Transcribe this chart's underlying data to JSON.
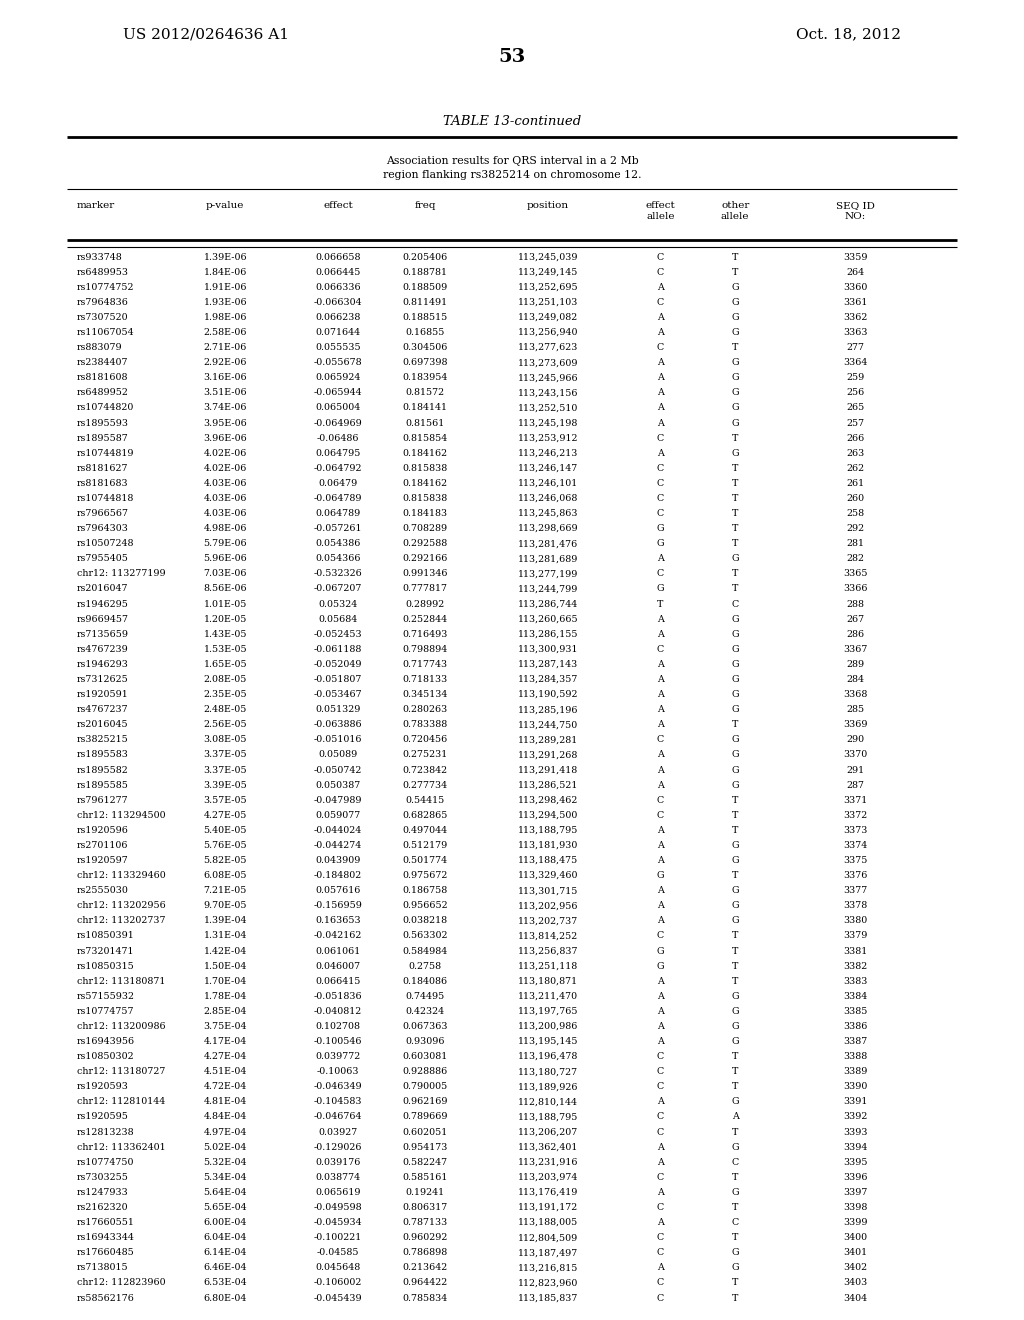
{
  "patent_number": "US 2012/0264636 A1",
  "date": "Oct. 18, 2012",
  "page_number": "53",
  "table_title": "TABLE 13-continued",
  "table_subtitle": "Association results for QRS interval in a 2 Mb\nregion flanking rs3825214 on chromosome 12.",
  "rows": [
    [
      "rs933748",
      "1.39E-06",
      "0.066658",
      "0.205406",
      "113,245,039",
      "C",
      "T",
      "3359"
    ],
    [
      "rs6489953",
      "1.84E-06",
      "0.066445",
      "0.188781",
      "113,249,145",
      "C",
      "T",
      "264"
    ],
    [
      "rs10774752",
      "1.91E-06",
      "0.066336",
      "0.188509",
      "113,252,695",
      "A",
      "G",
      "3360"
    ],
    [
      "rs7964836",
      "1.93E-06",
      "-0.066304",
      "0.811491",
      "113,251,103",
      "C",
      "G",
      "3361"
    ],
    [
      "rs7307520",
      "1.98E-06",
      "0.066238",
      "0.188515",
      "113,249,082",
      "A",
      "G",
      "3362"
    ],
    [
      "rs11067054",
      "2.58E-06",
      "0.071644",
      "0.16855",
      "113,256,940",
      "A",
      "G",
      "3363"
    ],
    [
      "rs883079",
      "2.71E-06",
      "0.055535",
      "0.304506",
      "113,277,623",
      "C",
      "T",
      "277"
    ],
    [
      "rs2384407",
      "2.92E-06",
      "-0.055678",
      "0.697398",
      "113,273,609",
      "A",
      "G",
      "3364"
    ],
    [
      "rs8181608",
      "3.16E-06",
      "0.065924",
      "0.183954",
      "113,245,966",
      "A",
      "G",
      "259"
    ],
    [
      "rs6489952",
      "3.51E-06",
      "-0.065944",
      "0.81572",
      "113,243,156",
      "A",
      "G",
      "256"
    ],
    [
      "rs10744820",
      "3.74E-06",
      "0.065004",
      "0.184141",
      "113,252,510",
      "A",
      "G",
      "265"
    ],
    [
      "rs1895593",
      "3.95E-06",
      "-0.064969",
      "0.81561",
      "113,245,198",
      "A",
      "G",
      "257"
    ],
    [
      "rs1895587",
      "3.96E-06",
      "-0.06486",
      "0.815854",
      "113,253,912",
      "C",
      "T",
      "266"
    ],
    [
      "rs10744819",
      "4.02E-06",
      "0.064795",
      "0.184162",
      "113,246,213",
      "A",
      "G",
      "263"
    ],
    [
      "rs8181627",
      "4.02E-06",
      "-0.064792",
      "0.815838",
      "113,246,147",
      "C",
      "T",
      "262"
    ],
    [
      "rs8181683",
      "4.03E-06",
      "0.06479",
      "0.184162",
      "113,246,101",
      "C",
      "T",
      "261"
    ],
    [
      "rs10744818",
      "4.03E-06",
      "-0.064789",
      "0.815838",
      "113,246,068",
      "C",
      "T",
      "260"
    ],
    [
      "rs7966567",
      "4.03E-06",
      "0.064789",
      "0.184183",
      "113,245,863",
      "C",
      "T",
      "258"
    ],
    [
      "rs7964303",
      "4.98E-06",
      "-0.057261",
      "0.708289",
      "113,298,669",
      "G",
      "T",
      "292"
    ],
    [
      "rs10507248",
      "5.79E-06",
      "0.054386",
      "0.292588",
      "113,281,476",
      "G",
      "T",
      "281"
    ],
    [
      "rs7955405",
      "5.96E-06",
      "0.054366",
      "0.292166",
      "113,281,689",
      "A",
      "G",
      "282"
    ],
    [
      "chr12: 113277199",
      "7.03E-06",
      "-0.532326",
      "0.991346",
      "113,277,199",
      "C",
      "T",
      "3365"
    ],
    [
      "rs2016047",
      "8.56E-06",
      "-0.067207",
      "0.777817",
      "113,244,799",
      "G",
      "T",
      "3366"
    ],
    [
      "rs1946295",
      "1.01E-05",
      "0.05324",
      "0.28992",
      "113,286,744",
      "T",
      "C",
      "288"
    ],
    [
      "rs9669457",
      "1.20E-05",
      "0.05684",
      "0.252844",
      "113,260,665",
      "A",
      "G",
      "267"
    ],
    [
      "rs7135659",
      "1.43E-05",
      "-0.052453",
      "0.716493",
      "113,286,155",
      "A",
      "G",
      "286"
    ],
    [
      "rs4767239",
      "1.53E-05",
      "-0.061188",
      "0.798894",
      "113,300,931",
      "C",
      "G",
      "3367"
    ],
    [
      "rs1946293",
      "1.65E-05",
      "-0.052049",
      "0.717743",
      "113,287,143",
      "A",
      "G",
      "289"
    ],
    [
      "rs7312625",
      "2.08E-05",
      "-0.051807",
      "0.718133",
      "113,284,357",
      "A",
      "G",
      "284"
    ],
    [
      "rs1920591",
      "2.35E-05",
      "-0.053467",
      "0.345134",
      "113,190,592",
      "A",
      "G",
      "3368"
    ],
    [
      "rs4767237",
      "2.48E-05",
      "0.051329",
      "0.280263",
      "113,285,196",
      "A",
      "G",
      "285"
    ],
    [
      "rs2016045",
      "2.56E-05",
      "-0.063886",
      "0.783388",
      "113,244,750",
      "A",
      "T",
      "3369"
    ],
    [
      "rs3825215",
      "3.08E-05",
      "-0.051016",
      "0.720456",
      "113,289,281",
      "C",
      "G",
      "290"
    ],
    [
      "rs1895583",
      "3.37E-05",
      "0.05089",
      "0.275231",
      "113,291,268",
      "A",
      "G",
      "3370"
    ],
    [
      "rs1895582",
      "3.37E-05",
      "-0.050742",
      "0.723842",
      "113,291,418",
      "A",
      "G",
      "291"
    ],
    [
      "rs1895585",
      "3.39E-05",
      "0.050387",
      "0.277734",
      "113,286,521",
      "A",
      "G",
      "287"
    ],
    [
      "rs7961277",
      "3.57E-05",
      "-0.047989",
      "0.54415",
      "113,298,462",
      "C",
      "T",
      "3371"
    ],
    [
      "chr12: 113294500",
      "4.27E-05",
      "0.059077",
      "0.682865",
      "113,294,500",
      "C",
      "T",
      "3372"
    ],
    [
      "rs1920596",
      "5.40E-05",
      "-0.044024",
      "0.497044",
      "113,188,795",
      "A",
      "T",
      "3373"
    ],
    [
      "rs2701106",
      "5.76E-05",
      "-0.044274",
      "0.512179",
      "113,181,930",
      "A",
      "G",
      "3374"
    ],
    [
      "rs1920597",
      "5.82E-05",
      "0.043909",
      "0.501774",
      "113,188,475",
      "A",
      "G",
      "3375"
    ],
    [
      "chr12: 113329460",
      "6.08E-05",
      "-0.184802",
      "0.975672",
      "113,329,460",
      "G",
      "T",
      "3376"
    ],
    [
      "rs2555030",
      "7.21E-05",
      "0.057616",
      "0.186758",
      "113,301,715",
      "A",
      "G",
      "3377"
    ],
    [
      "chr12: 113202956",
      "9.70E-05",
      "-0.156959",
      "0.956652",
      "113,202,956",
      "A",
      "G",
      "3378"
    ],
    [
      "chr12: 113202737",
      "1.39E-04",
      "0.163653",
      "0.038218",
      "113,202,737",
      "A",
      "G",
      "3380"
    ],
    [
      "rs10850391",
      "1.31E-04",
      "-0.042162",
      "0.563302",
      "113,814,252",
      "C",
      "T",
      "3379"
    ],
    [
      "rs73201471",
      "1.42E-04",
      "0.061061",
      "0.584984",
      "113,256,837",
      "G",
      "T",
      "3381"
    ],
    [
      "rs10850315",
      "1.50E-04",
      "0.046007",
      "0.2758",
      "113,251,118",
      "G",
      "T",
      "3382"
    ],
    [
      "chr12: 113180871",
      "1.70E-04",
      "0.066415",
      "0.184086",
      "113,180,871",
      "A",
      "T",
      "3383"
    ],
    [
      "rs57155932",
      "1.78E-04",
      "-0.051836",
      "0.74495",
      "113,211,470",
      "A",
      "G",
      "3384"
    ],
    [
      "rs10774757",
      "2.85E-04",
      "-0.040812",
      "0.42324",
      "113,197,765",
      "A",
      "G",
      "3385"
    ],
    [
      "chr12: 113200986",
      "3.75E-04",
      "0.102708",
      "0.067363",
      "113,200,986",
      "A",
      "G",
      "3386"
    ],
    [
      "rs16943956",
      "4.17E-04",
      "-0.100546",
      "0.93096",
      "113,195,145",
      "A",
      "G",
      "3387"
    ],
    [
      "rs10850302",
      "4.27E-04",
      "0.039772",
      "0.603081",
      "113,196,478",
      "C",
      "T",
      "3388"
    ],
    [
      "chr12: 113180727",
      "4.51E-04",
      "-0.10063",
      "0.928886",
      "113,180,727",
      "C",
      "T",
      "3389"
    ],
    [
      "rs1920593",
      "4.72E-04",
      "-0.046349",
      "0.790005",
      "113,189,926",
      "C",
      "T",
      "3390"
    ],
    [
      "chr12: 112810144",
      "4.81E-04",
      "-0.104583",
      "0.962169",
      "112,810,144",
      "A",
      "G",
      "3391"
    ],
    [
      "rs1920595",
      "4.84E-04",
      "-0.046764",
      "0.789669",
      "113,188,795",
      "C",
      "A",
      "3392"
    ],
    [
      "rs12813238",
      "4.97E-04",
      "0.03927",
      "0.602051",
      "113,206,207",
      "C",
      "T",
      "3393"
    ],
    [
      "chr12: 113362401",
      "5.02E-04",
      "-0.129026",
      "0.954173",
      "113,362,401",
      "A",
      "G",
      "3394"
    ],
    [
      "rs10774750",
      "5.32E-04",
      "0.039176",
      "0.582247",
      "113,231,916",
      "A",
      "C",
      "3395"
    ],
    [
      "rs7303255",
      "5.34E-04",
      "0.038774",
      "0.585161",
      "113,203,974",
      "C",
      "T",
      "3396"
    ],
    [
      "rs1247933",
      "5.64E-04",
      "0.065619",
      "0.19241",
      "113,176,419",
      "A",
      "G",
      "3397"
    ],
    [
      "rs2162320",
      "5.65E-04",
      "-0.049598",
      "0.806317",
      "113,191,172",
      "C",
      "T",
      "3398"
    ],
    [
      "rs17660551",
      "6.00E-04",
      "-0.045934",
      "0.787133",
      "113,188,005",
      "A",
      "C",
      "3399"
    ],
    [
      "rs16943344",
      "6.04E-04",
      "-0.100221",
      "0.960292",
      "112,804,509",
      "C",
      "T",
      "3400"
    ],
    [
      "rs17660485",
      "6.14E-04",
      "-0.04585",
      "0.786898",
      "113,187,497",
      "C",
      "G",
      "3401"
    ],
    [
      "rs7138015",
      "6.46E-04",
      "0.045648",
      "0.213642",
      "113,216,815",
      "A",
      "G",
      "3402"
    ],
    [
      "chr12: 112823960",
      "6.53E-04",
      "-0.106002",
      "0.964422",
      "112,823,960",
      "C",
      "T",
      "3403"
    ],
    [
      "rs58562176",
      "6.80E-04",
      "-0.045439",
      "0.785834",
      "113,185,837",
      "C",
      "T",
      "3404"
    ]
  ]
}
